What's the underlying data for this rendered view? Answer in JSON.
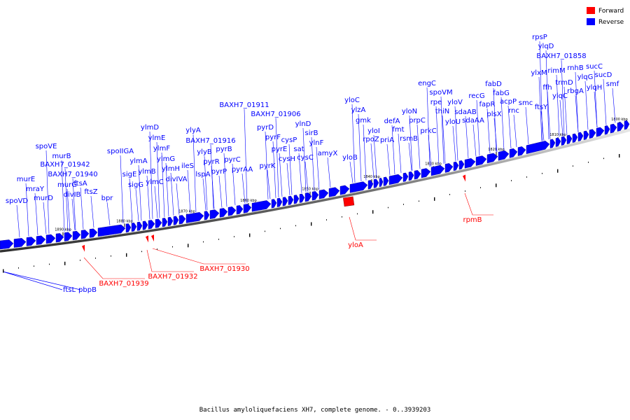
{
  "colors": {
    "forward": "#ff0000",
    "reverse": "#0000ff",
    "axis": "#808080"
  },
  "legend": [
    {
      "label": "Forward",
      "color": "#ff0000"
    },
    {
      "label": "Reverse",
      "color": "#0000ff"
    }
  ],
  "footer": "Bacillus amyloliquefaciens XH7, complete genome. - 0..3939203",
  "axis_ticks": [
    {
      "label": "1890 kbp",
      "value": 1890
    },
    {
      "label": "1880 kbp",
      "value": 1880
    },
    {
      "label": "1870 kbp",
      "value": 1870
    },
    {
      "label": "1860 kbp",
      "value": 1860
    },
    {
      "label": "1850 kbp",
      "value": 1850
    },
    {
      "label": "1840 kbp",
      "value": 1840
    },
    {
      "label": "1830 kbp",
      "value": 1830
    },
    {
      "label": "1820 kbp",
      "value": 1820
    },
    {
      "label": "1810 kbp",
      "value": 1810
    },
    {
      "label": "1800 kbp",
      "value": 1800
    }
  ],
  "reverse_genes": [
    "spoVD",
    "murE",
    "mraY",
    "murD",
    "spoVE",
    "murB",
    "BAXH7_01942",
    "murG",
    "BAXH7_01940",
    "divIB",
    "ftsA",
    "ftsZ",
    "bpr",
    "spoIIGA",
    "sigE",
    "sigG",
    "ylmA",
    "ylmB",
    "ylmC",
    "ylmD",
    "ylmE",
    "ylmF",
    "ylmG",
    "ylmH",
    "divIVA",
    "ileS",
    "ylyA",
    "BAXH7_01916",
    "lspA",
    "ylyB",
    "pyrR",
    "pyrP",
    "pyrB",
    "pyrC",
    "pyrAA",
    "BAXH7_01911",
    "pyrK",
    "pyrD",
    "pyrF",
    "pyrE",
    "BAXH7_01906",
    "cysP",
    "cysH",
    "sat",
    "cysC",
    "ylnD",
    "sirB",
    "ylnF",
    "amyX",
    "yloB",
    "yloC",
    "ylzA",
    "gmk",
    "yloI",
    "rpoZ",
    "priA",
    "defA",
    "fmt",
    "rsmB",
    "yloN",
    "prpC",
    "prkC",
    "engC",
    "spoVM",
    "rpe",
    "thiN",
    "yloU",
    "yloV",
    "sdaAB",
    "sdaAA",
    "recG",
    "fapR",
    "plsX",
    "fabD",
    "fabG",
    "acpP",
    "rnc",
    "smc",
    "ftsY",
    "ffh",
    "ylxM",
    "rpsP",
    "ylqD",
    "BAXH7_01858",
    "rimM",
    "trmD",
    "rnhB",
    "ylqC",
    "rbgA",
    "sucC",
    "ylqG",
    "ylqH",
    "sucD",
    "smf"
  ],
  "below_reverse": [
    "ftsL",
    "pbpB"
  ],
  "forward_genes": [
    "BAXH7_01939",
    "BAXH7_01932",
    "BAXH7_01930",
    "yloA",
    "rpmB"
  ]
}
